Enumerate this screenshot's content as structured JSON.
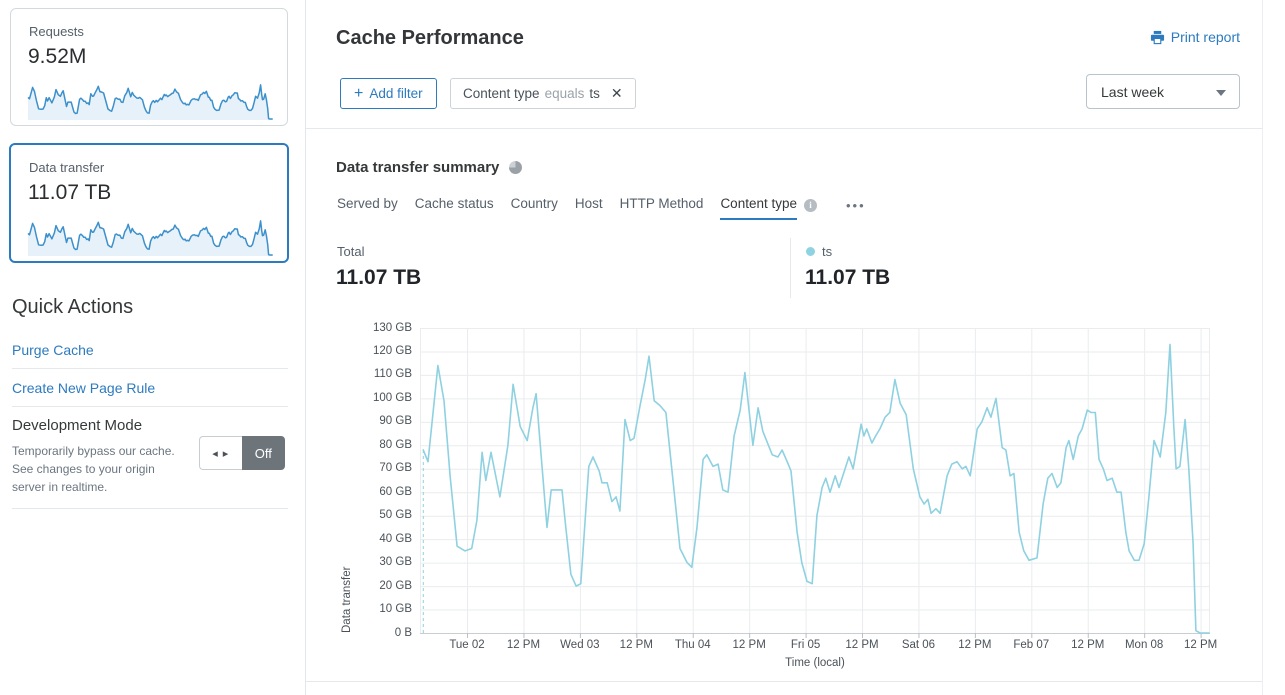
{
  "app": {
    "accent_blue": "#2c7bbf",
    "chart_line_color": "#8ed1e1",
    "sparkline_color": "#3c90cb"
  },
  "icons": {
    "toggle_arrows": "◂ ▸",
    "close": "✕",
    "plus": "+",
    "more": "•••",
    "info": "i"
  },
  "sidebar": {
    "cards": [
      {
        "label": "Requests",
        "value": "9.52M",
        "selected": false
      },
      {
        "label": "Data transfer",
        "value": "11.07 TB",
        "selected": true
      }
    ],
    "quick_actions": {
      "title": "Quick Actions",
      "links": [
        "Purge Cache",
        "Create New Page Rule"
      ],
      "dev_mode": {
        "title": "Development Mode",
        "description": "Temporarily bypass our cache. See changes to your origin server in realtime.",
        "state": "Off"
      }
    }
  },
  "header": {
    "title": "Cache Performance",
    "print_label": "Print report",
    "add_filter_label": "Add filter",
    "filter_chip": {
      "field": "Content type",
      "operator": "equals",
      "value": "ts"
    },
    "time_range": "Last week"
  },
  "summary": {
    "title": "Data transfer summary",
    "tabs": [
      {
        "label": "Served by",
        "active": false
      },
      {
        "label": "Cache status",
        "active": false
      },
      {
        "label": "Country",
        "active": false
      },
      {
        "label": "Host",
        "active": false
      },
      {
        "label": "HTTP Method",
        "active": false
      },
      {
        "label": "Content type",
        "active": true,
        "has_info_icon": true
      }
    ],
    "total_label": "Total",
    "total_value": "11.07 TB",
    "legend": {
      "name": "ts",
      "value": "11.07 TB",
      "color": "#8fd3e3"
    }
  },
  "chart_data": [
    {
      "id": "data-transfer-timeseries",
      "type": "line",
      "title": "Data transfer summary — ts",
      "xlabel": "Time (local)",
      "ylabel": "Data transfer",
      "x_unit": "hours from range start (one week window ending Mon 08 ~2 PM)",
      "x_range_hours": [
        0,
        168
      ],
      "ylim_gb": [
        0,
        130
      ],
      "y_ticks": [
        "0 B",
        "10 GB",
        "20 GB",
        "30 GB",
        "40 GB",
        "50 GB",
        "60 GB",
        "70 GB",
        "80 GB",
        "90 GB",
        "100 GB",
        "110 GB",
        "120 GB",
        "130 GB"
      ],
      "x_ticks": [
        {
          "h": 10,
          "label": "Tue 02"
        },
        {
          "h": 22,
          "label": "12 PM"
        },
        {
          "h": 34,
          "label": "Wed 03"
        },
        {
          "h": 46,
          "label": "12 PM"
        },
        {
          "h": 58,
          "label": "Thu 04"
        },
        {
          "h": 70,
          "label": "12 PM"
        },
        {
          "h": 82,
          "label": "Fri 05"
        },
        {
          "h": 94,
          "label": "12 PM"
        },
        {
          "h": 106,
          "label": "Sat 06"
        },
        {
          "h": 118,
          "label": "12 PM"
        },
        {
          "h": 130,
          "label": "Feb 07"
        },
        {
          "h": 142,
          "label": "12 PM"
        },
        {
          "h": 154,
          "label": "Mon 08"
        },
        {
          "h": 166,
          "label": "12 PM"
        }
      ],
      "grid": true,
      "incomplete_start_dashed": true,
      "line_color": "#8ed1e1",
      "series": [
        {
          "name": "ts",
          "unit": "GB",
          "points": [
            [
              0.7,
              78
            ],
            [
              1.7,
              73
            ],
            [
              3.8,
              114
            ],
            [
              5.1,
              99
            ],
            [
              6.4,
              67
            ],
            [
              7.9,
              37
            ],
            [
              9.6,
              35
            ],
            [
              11,
              36
            ],
            [
              12.1,
              48
            ],
            [
              13.2,
              77
            ],
            [
              14,
              65
            ],
            [
              15.1,
              77
            ],
            [
              17,
              58
            ],
            [
              18.7,
              80
            ],
            [
              19.8,
              106
            ],
            [
              21.3,
              88
            ],
            [
              22.8,
              82
            ],
            [
              24,
              96
            ],
            [
              24.7,
              102
            ],
            [
              27,
              45
            ],
            [
              27.9,
              61
            ],
            [
              30.2,
              61
            ],
            [
              31,
              45
            ],
            [
              32.1,
              25
            ],
            [
              33.2,
              20
            ],
            [
              34.2,
              21
            ],
            [
              35.9,
              71
            ],
            [
              36.8,
              75
            ],
            [
              38.1,
              69
            ],
            [
              38.7,
              64
            ],
            [
              39.8,
              64
            ],
            [
              40.8,
              56
            ],
            [
              41.7,
              58
            ],
            [
              42.5,
              52
            ],
            [
              43.6,
              91
            ],
            [
              44.7,
              82
            ],
            [
              45.5,
              83
            ],
            [
              46.8,
              97
            ],
            [
              47.9,
              108
            ],
            [
              48.7,
              118
            ],
            [
              49.8,
              99
            ],
            [
              51,
              97
            ],
            [
              52.3,
              94
            ],
            [
              53.8,
              65
            ],
            [
              55.3,
              36
            ],
            [
              56.8,
              30
            ],
            [
              57.8,
              28
            ],
            [
              58.9,
              45
            ],
            [
              60.2,
              74
            ],
            [
              61,
              76
            ],
            [
              62.3,
              71
            ],
            [
              63.4,
              72
            ],
            [
              64.4,
              61
            ],
            [
              65.5,
              60
            ],
            [
              66.8,
              84
            ],
            [
              68.1,
              95
            ],
            [
              69.1,
              111
            ],
            [
              70.8,
              80
            ],
            [
              71.9,
              96
            ],
            [
              72.9,
              86
            ],
            [
              74.9,
              76
            ],
            [
              76.1,
              75
            ],
            [
              77,
              78
            ],
            [
              78.3,
              72
            ],
            [
              78.9,
              69
            ],
            [
              80.2,
              43
            ],
            [
              81.2,
              30
            ],
            [
              82.3,
              22
            ],
            [
              83.4,
              21
            ],
            [
              84.4,
              50
            ],
            [
              85.5,
              62
            ],
            [
              86.3,
              66
            ],
            [
              87.2,
              60
            ],
            [
              88.3,
              67
            ],
            [
              89.1,
              62
            ],
            [
              90.4,
              70
            ],
            [
              91.2,
              75
            ],
            [
              92.1,
              70
            ],
            [
              92.9,
              79
            ],
            [
              93.8,
              89
            ],
            [
              94.4,
              84
            ],
            [
              95,
              87
            ],
            [
              96.1,
              81
            ],
            [
              96.9,
              84
            ],
            [
              97.8,
              87
            ],
            [
              98.9,
              92
            ],
            [
              99.9,
              94
            ],
            [
              101,
              108
            ],
            [
              102.1,
              98
            ],
            [
              103.4,
              93
            ],
            [
              104.9,
              70
            ],
            [
              106.3,
              58
            ],
            [
              107.2,
              55
            ],
            [
              108,
              57
            ],
            [
              108.7,
              51
            ],
            [
              109.7,
              53
            ],
            [
              110.6,
              51
            ],
            [
              112.1,
              67
            ],
            [
              113.1,
              72
            ],
            [
              114.2,
              73
            ],
            [
              115.3,
              70
            ],
            [
              116.1,
              71
            ],
            [
              117,
              67
            ],
            [
              118.5,
              87
            ],
            [
              119.5,
              90
            ],
            [
              120.6,
              96
            ],
            [
              121.4,
              92
            ],
            [
              122.5,
              100
            ],
            [
              123.8,
              79
            ],
            [
              124.6,
              78
            ],
            [
              125.5,
              67
            ],
            [
              126.3,
              68
            ],
            [
              127.4,
              43
            ],
            [
              128.4,
              35
            ],
            [
              129.5,
              31
            ],
            [
              131.2,
              32
            ],
            [
              132.5,
              55
            ],
            [
              133.5,
              66
            ],
            [
              134.4,
              68
            ],
            [
              135.5,
              62
            ],
            [
              136.3,
              64
            ],
            [
              137.4,
              79
            ],
            [
              138,
              82
            ],
            [
              138.9,
              74
            ],
            [
              140,
              84
            ],
            [
              140.8,
              87
            ],
            [
              141.9,
              95
            ],
            [
              142.7,
              94
            ],
            [
              143.6,
              94
            ],
            [
              144.4,
              74
            ],
            [
              145.3,
              70
            ],
            [
              146.1,
              65
            ],
            [
              147.2,
              66
            ],
            [
              148.2,
              60
            ],
            [
              149.1,
              60
            ],
            [
              150.1,
              43
            ],
            [
              150.8,
              35
            ],
            [
              151.9,
              31
            ],
            [
              152.9,
              31
            ],
            [
              154,
              38
            ],
            [
              155,
              58
            ],
            [
              156.1,
              82
            ],
            [
              156.7,
              79
            ],
            [
              157.4,
              75
            ],
            [
              158.6,
              94
            ],
            [
              159.5,
              123
            ],
            [
              160.3,
              88
            ],
            [
              160.8,
              70
            ],
            [
              161.6,
              71
            ],
            [
              162.7,
              91
            ],
            [
              163.5,
              70
            ],
            [
              164.4,
              38
            ],
            [
              165,
              1
            ],
            [
              165.9,
              0
            ],
            [
              167.8,
              0
            ]
          ]
        }
      ]
    },
    {
      "id": "requests-sparkline",
      "type": "line",
      "title": "Requests (last week sparkline)",
      "ylim_relative": [
        0,
        130
      ],
      "note": "miniature of the same weekly traffic pattern",
      "points_same_as": "data-transfer-timeseries"
    },
    {
      "id": "data-transfer-sparkline",
      "type": "line",
      "title": "Data transfer (last week sparkline)",
      "ylim_relative": [
        0,
        130
      ],
      "note": "miniature of the same weekly traffic pattern",
      "points_same_as": "data-transfer-timeseries"
    }
  ]
}
